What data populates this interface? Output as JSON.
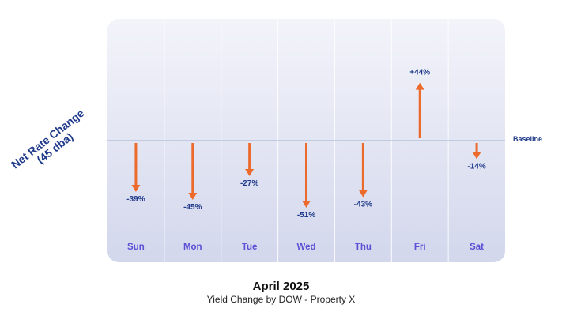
{
  "caption": {
    "title": "April 2025",
    "subtitle": "Yield Change by DOW - Property X"
  },
  "ylabel_lines": [
    "Net Rate Change",
    "(45 dba)"
  ],
  "baseline_label": "Baseline",
  "colors": {
    "arrow": "#ec6a2c",
    "day_label": "#5b4fd6",
    "value_label": "#1f3a8a",
    "baseline": "#b9bfdc",
    "panel_top": "#f3f4fa",
    "panel_bottom": "#d3d7ec",
    "divider": "#ffffff"
  },
  "chart_data": {
    "type": "bar",
    "categories": [
      "Sun",
      "Mon",
      "Tue",
      "Wed",
      "Thu",
      "Fri",
      "Sat"
    ],
    "values": [
      -39,
      -45,
      -27,
      -51,
      -43,
      44,
      -14
    ],
    "value_labels": [
      "-39%",
      "-45%",
      "-27%",
      "-51%",
      "-43%",
      "+44%",
      "-14%"
    ],
    "ylim": [
      -60,
      60
    ],
    "grid": false,
    "legend": "none"
  }
}
